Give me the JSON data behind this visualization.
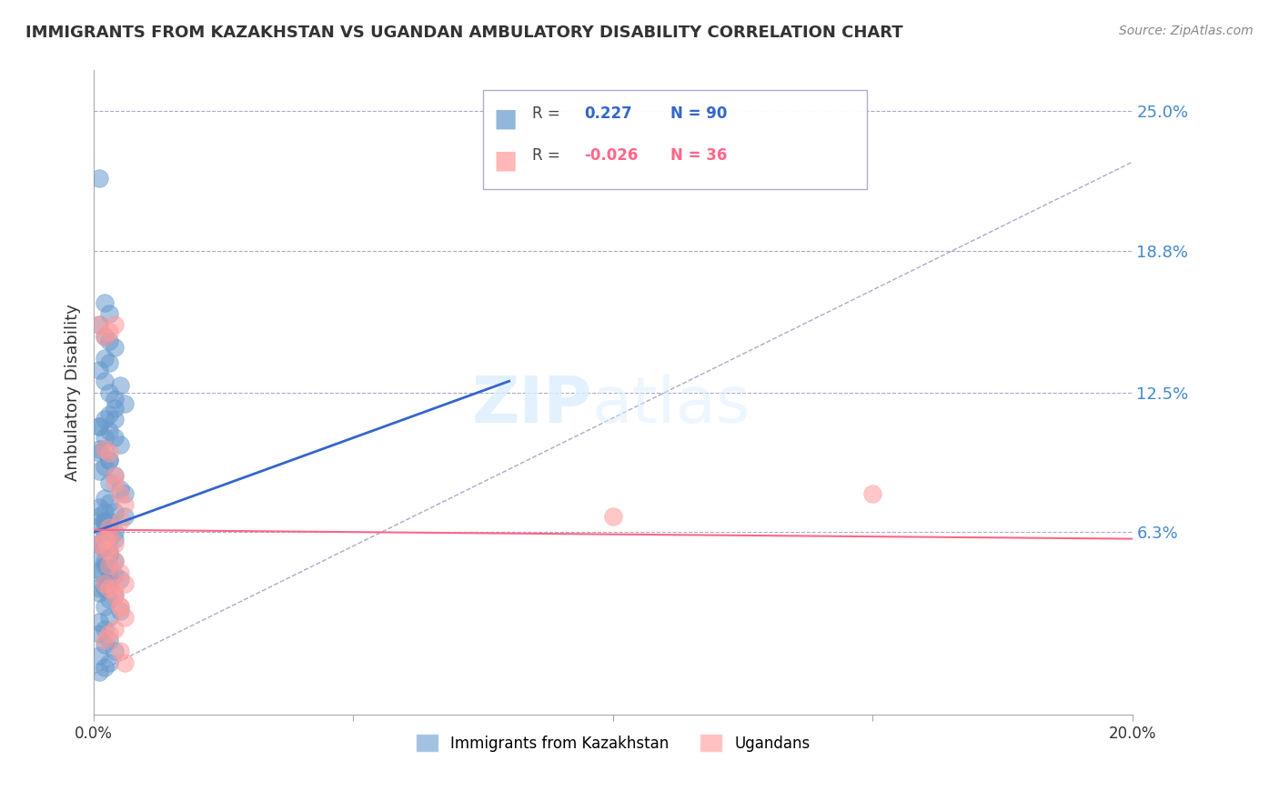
{
  "title": "IMMIGRANTS FROM KAZAKHSTAN VS UGANDAN AMBULATORY DISABILITY CORRELATION CHART",
  "source": "Source: ZipAtlas.com",
  "ylabel": "Ambulatory Disability",
  "ytick_labels": [
    "25.0%",
    "18.8%",
    "12.5%",
    "6.3%"
  ],
  "ytick_values": [
    0.25,
    0.188,
    0.125,
    0.063
  ],
  "xlim": [
    0.0,
    0.2
  ],
  "ylim": [
    -0.018,
    0.268
  ],
  "legend_blue_r": "0.227",
  "legend_blue_n": "90",
  "legend_pink_r": "-0.026",
  "legend_pink_n": "36",
  "legend_label_blue": "Immigrants from Kazakhstan",
  "legend_label_pink": "Ugandans",
  "blue_color": "#6699CC",
  "pink_color": "#FF9999",
  "blue_line_color": "#3366CC",
  "pink_line_color": "#FF6688",
  "diagonal_color": "#AAAACC",
  "blue_scatter_x": [
    0.001,
    0.002,
    0.003,
    0.001,
    0.002,
    0.003,
    0.004,
    0.002,
    0.003,
    0.001,
    0.002,
    0.005,
    0.003,
    0.004,
    0.006,
    0.004,
    0.003,
    0.002,
    0.001,
    0.003,
    0.004,
    0.005,
    0.002,
    0.001,
    0.003,
    0.002,
    0.001,
    0.004,
    0.003,
    0.005,
    0.006,
    0.002,
    0.001,
    0.003,
    0.004,
    0.001,
    0.002,
    0.003,
    0.001,
    0.002,
    0.001,
    0.002,
    0.001,
    0.003,
    0.002,
    0.004,
    0.001,
    0.002,
    0.003,
    0.001,
    0.002,
    0.003,
    0.001,
    0.004,
    0.005,
    0.003,
    0.002,
    0.001,
    0.006,
    0.003,
    0.002,
    0.004,
    0.003,
    0.001,
    0.002,
    0.003,
    0.004,
    0.002,
    0.001,
    0.003,
    0.002,
    0.001,
    0.004,
    0.003,
    0.002,
    0.005,
    0.003,
    0.001,
    0.002,
    0.001,
    0.003,
    0.002,
    0.004,
    0.001,
    0.003,
    0.002,
    0.001,
    0.004,
    0.002,
    0.003
  ],
  "blue_scatter_y": [
    0.22,
    0.165,
    0.16,
    0.155,
    0.15,
    0.148,
    0.145,
    0.14,
    0.138,
    0.135,
    0.13,
    0.128,
    0.125,
    0.122,
    0.12,
    0.118,
    0.115,
    0.113,
    0.11,
    0.108,
    0.105,
    0.102,
    0.1,
    0.098,
    0.095,
    0.092,
    0.09,
    0.088,
    0.085,
    0.082,
    0.08,
    0.105,
    0.1,
    0.095,
    0.113,
    0.11,
    0.078,
    0.076,
    0.074,
    0.072,
    0.07,
    0.068,
    0.066,
    0.064,
    0.062,
    0.06,
    0.058,
    0.056,
    0.054,
    0.052,
    0.05,
    0.048,
    0.046,
    0.044,
    0.042,
    0.04,
    0.038,
    0.036,
    0.07,
    0.068,
    0.065,
    0.063,
    0.06,
    0.058,
    0.055,
    0.053,
    0.05,
    0.048,
    0.045,
    0.043,
    0.04,
    0.038,
    0.035,
    0.033,
    0.03,
    0.028,
    0.025,
    0.023,
    0.02,
    0.018,
    0.015,
    0.013,
    0.01,
    0.008,
    0.005,
    0.003,
    0.001,
    0.072,
    0.068,
    0.065
  ],
  "pink_scatter_x": [
    0.001,
    0.002,
    0.003,
    0.004,
    0.002,
    0.003,
    0.004,
    0.005,
    0.006,
    0.004,
    0.003,
    0.005,
    0.002,
    0.001,
    0.003,
    0.004,
    0.005,
    0.006,
    0.002,
    0.003,
    0.004,
    0.005,
    0.1,
    0.15,
    0.006,
    0.004,
    0.003,
    0.002,
    0.005,
    0.006,
    0.003,
    0.004,
    0.002,
    0.003,
    0.004,
    0.005
  ],
  "pink_scatter_y": [
    0.155,
    0.15,
    0.152,
    0.155,
    0.1,
    0.098,
    0.085,
    0.08,
    0.075,
    0.088,
    0.065,
    0.068,
    0.06,
    0.058,
    0.055,
    0.05,
    0.045,
    0.04,
    0.04,
    0.038,
    0.035,
    0.03,
    0.07,
    0.08,
    0.025,
    0.02,
    0.018,
    0.015,
    0.01,
    0.005,
    0.062,
    0.058,
    0.055,
    0.048,
    0.038,
    0.03
  ]
}
